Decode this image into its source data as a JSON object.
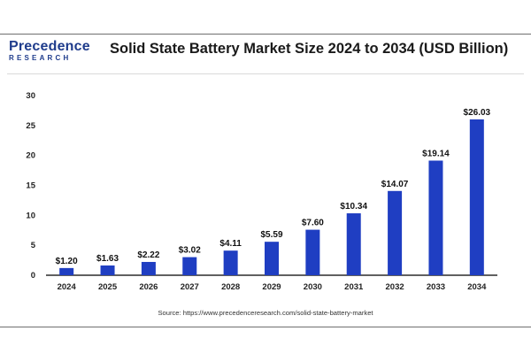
{
  "brand": {
    "name": "Precedence",
    "sub": "RESEARCH"
  },
  "header": {
    "title": "Solid State Battery Market Size 2024 to 2034 (USD Billion)"
  },
  "source": "Source: https://www.precedenceresearch.com/solid-state-battery-market",
  "colors": {
    "bar": "#1f3ec2",
    "axis": "#000000",
    "brand": "#1f3c8c"
  },
  "chart_data": {
    "type": "bar",
    "title": "Solid State Battery Market Size 2024 to 2034 (USD Billion)",
    "xlabel": "",
    "ylabel": "",
    "categories": [
      "2024",
      "2025",
      "2026",
      "2027",
      "2028",
      "2029",
      "2030",
      "2031",
      "2032",
      "2033",
      "2034"
    ],
    "values": [
      1.2,
      1.63,
      2.22,
      3.02,
      4.11,
      5.59,
      7.6,
      10.34,
      14.07,
      19.14,
      26.03
    ],
    "data_labels": [
      "$1.20",
      "$1.63",
      "$2.22",
      "$3.02",
      "$4.11",
      "$5.59",
      "$7.60",
      "$10.34",
      "$14.07",
      "$19.14",
      "$26.03"
    ],
    "y_ticks": [
      0,
      5,
      10,
      15,
      20,
      25,
      30
    ],
    "ylim": [
      0,
      30
    ],
    "grid": false,
    "legend": "none"
  }
}
